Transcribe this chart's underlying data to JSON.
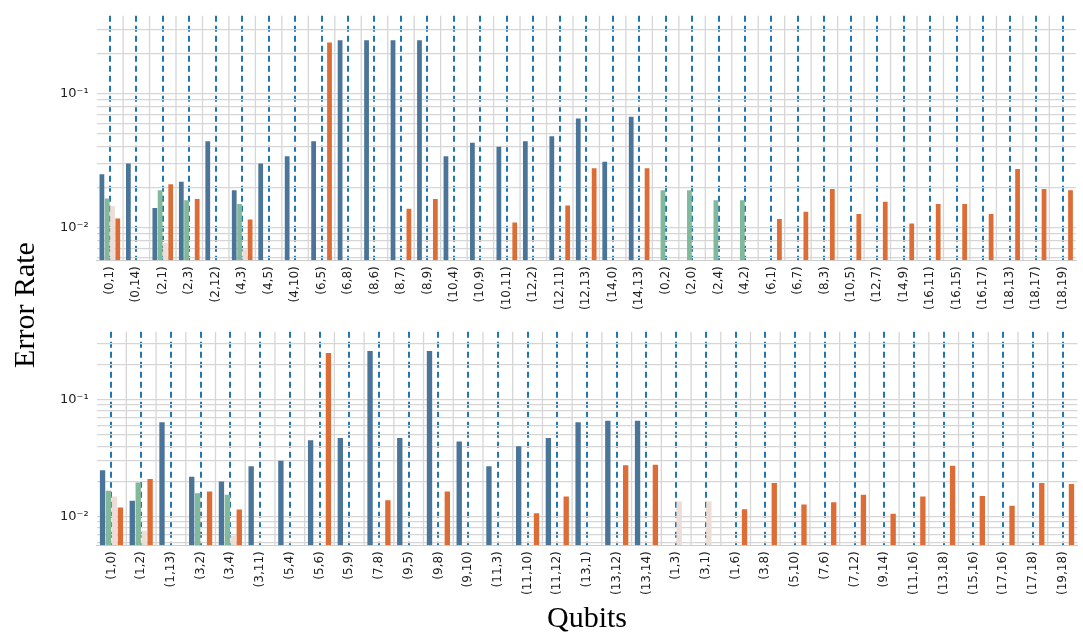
{
  "chart_data": [
    {
      "type": "bar",
      "ylabel": "Error Rate",
      "categories": [
        "(0,1)",
        "(0,14)",
        "(2,1)",
        "(2,3)",
        "(2,12)",
        "(4,3)",
        "(4,5)",
        "(4,10)",
        "(6,5)",
        "(6,8)",
        "(8,6)",
        "(8,7)",
        "(8,9)",
        "(10,4)",
        "(10,9)",
        "(10,11)",
        "(12,2)",
        "(12,11)",
        "(12,13)",
        "(14,0)",
        "(14,13)",
        "(0,2)",
        "(2,0)",
        "(2,4)",
        "(4,2)",
        "(6,1)",
        "(6,7)",
        "(8,3)",
        "(10,5)",
        "(12,7)",
        "(14,9)",
        "(16,11)",
        "(16,15)",
        "(16,17)",
        "(18,13)",
        "(18,17)",
        "(18,19)"
      ],
      "series": [
        {
          "color": "#4a7598",
          "values": [
            0.025,
            0.03,
            0.014,
            0.022,
            0.044,
            0.019,
            0.03,
            0.034,
            0.044,
            0.25,
            0.25,
            0.25,
            0.25,
            0.034,
            0.043,
            0.04,
            0.044,
            0.048,
            0.065,
            0.031,
            0.067,
            null,
            null,
            null,
            null,
            null,
            null,
            null,
            null,
            null,
            null,
            null,
            null,
            null,
            null,
            null,
            null
          ]
        },
        {
          "color": "#82b99a",
          "values": [
            0.0165,
            null,
            0.019,
            0.016,
            null,
            0.015,
            null,
            null,
            null,
            null,
            null,
            null,
            null,
            null,
            null,
            null,
            null,
            null,
            null,
            null,
            null,
            0.019,
            0.019,
            0.016,
            0.016,
            null,
            null,
            null,
            null,
            null,
            null,
            null,
            null,
            null,
            null,
            null,
            null
          ]
        },
        {
          "color": "#eedcd6",
          "values": [
            0.0145,
            null,
            0.0077,
            null,
            null,
            0.0069,
            null,
            null,
            null,
            null,
            null,
            null,
            null,
            null,
            null,
            null,
            null,
            null,
            null,
            null,
            null,
            null,
            null,
            null,
            null,
            null,
            null,
            null,
            null,
            null,
            null,
            null,
            null,
            null,
            null,
            null,
            null
          ]
        },
        {
          "color": "#dd6d36",
          "values": [
            0.0117,
            null,
            0.021,
            0.0163,
            null,
            0.0115,
            null,
            null,
            0.24,
            null,
            null,
            0.0138,
            0.0163,
            null,
            null,
            0.0109,
            null,
            0.0146,
            0.0277,
            null,
            0.0277,
            null,
            null,
            null,
            null,
            0.0116,
            0.0131,
            0.0194,
            0.0126,
            0.0156,
            0.0107,
            0.015,
            0.015,
            0.0126,
            0.0274,
            0.0194,
            0.019
          ]
        }
      ],
      "log": "y",
      "ylim": [
        0.0057,
        0.38
      ],
      "yticks": [
        {
          "value": 0.006,
          "label": null
        },
        {
          "value": 0.007,
          "label": null
        },
        {
          "value": 0.008,
          "label": null
        },
        {
          "value": 0.009,
          "label": null
        },
        {
          "value": 0.01,
          "label": "10⁻²"
        },
        {
          "value": 0.02,
          "label": null
        },
        {
          "value": 0.03,
          "label": null
        },
        {
          "value": 0.04,
          "label": null
        },
        {
          "value": 0.05,
          "label": null
        },
        {
          "value": 0.06,
          "label": null
        },
        {
          "value": 0.07,
          "label": null
        },
        {
          "value": 0.08,
          "label": null
        },
        {
          "value": 0.09,
          "label": null
        },
        {
          "value": 0.1,
          "label": "10⁻¹"
        },
        {
          "value": 0.2,
          "label": null
        },
        {
          "value": 0.3,
          "label": null
        }
      ],
      "grid": true,
      "legend": false
    },
    {
      "type": "bar",
      "xlabel": "Qubits",
      "categories": [
        "(1,0)",
        "(1,2)",
        "(1,13)",
        "(3,2)",
        "(3,4)",
        "(3,11)",
        "(5,4)",
        "(5,6)",
        "(5,9)",
        "(7,8)",
        "(9,5)",
        "(9,8)",
        "(9,10)",
        "(11,3)",
        "(11,10)",
        "(11,12)",
        "(13,1)",
        "(13,12)",
        "(13,14)",
        "(1,3)",
        "(3,1)",
        "(1,6)",
        "(3,8)",
        "(5,10)",
        "(7,6)",
        "(7,12)",
        "(9,14)",
        "(11,16)",
        "(13,18)",
        "(15,16)",
        "(17,16)",
        "(17,18)",
        "(19,18)"
      ],
      "series": [
        {
          "color": "#4a7598",
          "values": [
            0.025,
            0.0137,
            0.064,
            0.022,
            0.02,
            0.027,
            0.03,
            0.045,
            0.047,
            0.26,
            0.047,
            0.26,
            0.044,
            0.027,
            0.04,
            0.047,
            0.064,
            0.066,
            0.066,
            null,
            null,
            null,
            null,
            null,
            null,
            null,
            null,
            null,
            null,
            null,
            null,
            null,
            null
          ]
        },
        {
          "color": "#82b99a",
          "values": [
            0.0167,
            0.0196,
            null,
            0.0159,
            0.0154,
            null,
            null,
            null,
            null,
            null,
            null,
            null,
            null,
            null,
            null,
            null,
            null,
            null,
            null,
            null,
            null,
            null,
            null,
            null,
            null,
            null,
            null,
            null,
            null,
            null,
            null,
            null,
            null
          ]
        },
        {
          "color": "#eedcd6",
          "values": [
            0.0149,
            0.0076,
            null,
            null,
            0.0069,
            null,
            null,
            null,
            null,
            null,
            null,
            null,
            null,
            null,
            null,
            null,
            null,
            null,
            null,
            0.0135,
            0.0135,
            null,
            null,
            null,
            null,
            null,
            null,
            null,
            null,
            null,
            null,
            null,
            null
          ]
        },
        {
          "color": "#dd6d36",
          "values": [
            0.012,
            0.021,
            null,
            0.0164,
            0.0115,
            null,
            null,
            0.25,
            null,
            0.0138,
            null,
            0.0164,
            null,
            null,
            0.0107,
            0.0149,
            null,
            0.0275,
            0.0278,
            null,
            null,
            0.0116,
            0.0194,
            0.0127,
            0.0133,
            0.0154,
            0.0106,
            0.0149,
            0.0273,
            0.015,
            0.0124,
            0.0194,
            0.019
          ]
        }
      ],
      "log": "y",
      "ylim": [
        0.0057,
        0.38
      ],
      "yticks": [
        {
          "value": 0.006,
          "label": null
        },
        {
          "value": 0.007,
          "label": null
        },
        {
          "value": 0.008,
          "label": null
        },
        {
          "value": 0.009,
          "label": null
        },
        {
          "value": 0.01,
          "label": "10⁻²"
        },
        {
          "value": 0.02,
          "label": null
        },
        {
          "value": 0.03,
          "label": null
        },
        {
          "value": 0.04,
          "label": null
        },
        {
          "value": 0.05,
          "label": null
        },
        {
          "value": 0.06,
          "label": null
        },
        {
          "value": 0.07,
          "label": null
        },
        {
          "value": 0.08,
          "label": null
        },
        {
          "value": 0.09,
          "label": null
        },
        {
          "value": 0.1,
          "label": "10⁻¹"
        },
        {
          "value": 0.2,
          "label": null
        },
        {
          "value": 0.3,
          "label": null
        }
      ],
      "grid": true,
      "legend": false
    }
  ]
}
